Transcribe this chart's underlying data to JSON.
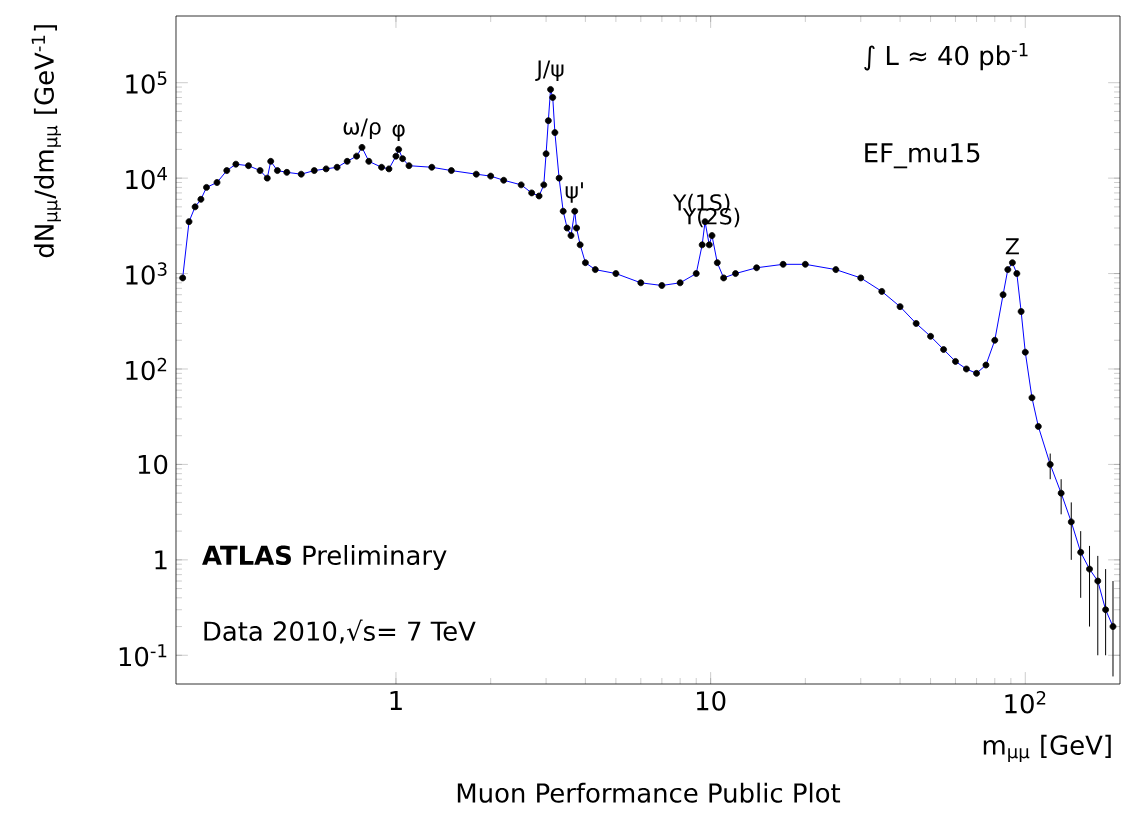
{
  "chart_data": {
    "type": "scatter",
    "ylabel": "dN$_{μμ}$/dm$_{μμ}$ [GeV$^{-1}$]",
    "xlabel": "m$_{μμ}$ [GeV]",
    "log": "xy",
    "xlim": [
      0.2,
      200
    ],
    "ylim": [
      0.05,
      500000
    ],
    "xticks": [
      1,
      10,
      {
        "value": 100,
        "label": "10$^{2}$"
      }
    ],
    "yticks": [
      {
        "value": 0.1,
        "label": "10$^{-1}$"
      },
      1,
      10,
      {
        "value": 100,
        "label": "10$^{2}$"
      },
      {
        "value": 1000,
        "label": "10$^{3}$"
      },
      {
        "value": 10000,
        "label": "10$^{4}$"
      },
      {
        "value": 100000,
        "label": "10$^{5}$"
      }
    ],
    "line_style": "solid",
    "x": [
      0.21,
      0.22,
      0.23,
      0.24,
      0.25,
      0.27,
      0.29,
      0.31,
      0.34,
      0.37,
      0.39,
      0.4,
      0.42,
      0.45,
      0.5,
      0.55,
      0.6,
      0.65,
      0.7,
      0.75,
      0.78,
      0.82,
      0.9,
      0.95,
      1.0,
      1.02,
      1.05,
      1.1,
      1.3,
      1.5,
      1.8,
      2.0,
      2.2,
      2.5,
      2.7,
      2.85,
      2.95,
      3.0,
      3.05,
      3.1,
      3.15,
      3.2,
      3.3,
      3.4,
      3.5,
      3.6,
      3.7,
      3.75,
      3.85,
      4.0,
      4.3,
      5,
      6,
      7,
      8,
      9,
      9.4,
      9.6,
      9.9,
      10.1,
      10.5,
      11,
      12,
      14,
      17,
      20,
      25,
      30,
      35,
      40,
      45,
      50,
      55,
      60,
      65,
      70,
      75,
      80,
      85,
      88,
      91,
      94,
      97,
      100,
      105,
      110,
      120,
      130,
      140,
      150,
      160,
      170,
      180,
      190
    ],
    "series": [
      {
        "type": "line",
        "marker": "none",
        "color": "#0000ff",
        "values": [
          900,
          3500,
          5000,
          6000,
          8000,
          9000,
          12000,
          14000,
          13500,
          12000,
          10000,
          15000,
          12000,
          11500,
          11000,
          12000,
          12500,
          13000,
          15000,
          17000,
          21000,
          15000,
          13000,
          12500,
          17000,
          20000,
          16000,
          13500,
          13000,
          12000,
          11000,
          10500,
          9500,
          8500,
          7000,
          6500,
          8500,
          18000,
          40000,
          85000,
          70000,
          30000,
          10000,
          4500,
          3000,
          2500,
          4500,
          3000,
          2000,
          1300,
          1100,
          1000,
          800,
          750,
          800,
          1000,
          2000,
          3500,
          2000,
          2500,
          1300,
          900,
          1000,
          1150,
          1250,
          1250,
          1100,
          900,
          650,
          450,
          300,
          220,
          160,
          120,
          100,
          90,
          110,
          200,
          600,
          1100,
          1300,
          1000,
          400,
          150,
          50,
          25,
          10,
          5,
          2.5,
          1.2,
          0.8,
          0.6,
          0.3,
          0.2
        ]
      },
      {
        "marker": "circle",
        "color": "#000000",
        "values": [
          900,
          3500,
          5000,
          6000,
          8000,
          9000,
          12000,
          14000,
          13500,
          12000,
          10000,
          15000,
          12000,
          11500,
          11000,
          12000,
          12500,
          13000,
          15000,
          17000,
          21000,
          15000,
          13000,
          12500,
          17000,
          20000,
          16000,
          13500,
          13000,
          12000,
          11000,
          10500,
          9500,
          8500,
          7000,
          6500,
          8500,
          18000,
          40000,
          85000,
          70000,
          30000,
          10000,
          4500,
          3000,
          2500,
          4500,
          3000,
          2000,
          1300,
          1100,
          1000,
          800,
          750,
          800,
          1000,
          2000,
          3500,
          2000,
          2500,
          1300,
          900,
          1000,
          1150,
          1250,
          1250,
          1100,
          900,
          650,
          450,
          300,
          220,
          160,
          120,
          100,
          90,
          110,
          200,
          600,
          1100,
          1300,
          1000,
          400,
          150,
          50,
          25,
          10,
          5,
          2.5,
          1.2,
          0.8,
          0.6,
          0.3,
          0.2
        ],
        "errors": [
          null,
          null,
          null,
          null,
          null,
          null,
          null,
          null,
          null,
          null,
          null,
          null,
          null,
          null,
          null,
          null,
          null,
          null,
          null,
          null,
          null,
          null,
          null,
          null,
          null,
          null,
          null,
          null,
          null,
          null,
          null,
          null,
          null,
          null,
          null,
          null,
          null,
          null,
          null,
          null,
          null,
          null,
          null,
          null,
          null,
          null,
          null,
          null,
          null,
          null,
          null,
          null,
          null,
          null,
          null,
          null,
          null,
          null,
          null,
          null,
          null,
          null,
          null,
          null,
          null,
          null,
          null,
          null,
          null,
          null,
          null,
          null,
          null,
          null,
          null,
          null,
          null,
          null,
          null,
          null,
          null,
          null,
          null,
          null,
          null,
          null,
          3,
          2,
          1.5,
          0.8,
          0.6,
          0.5,
          [
            0.1,
            0.8
          ],
          [
            0.06,
            0.6
          ]
        ]
      }
    ],
    "annotations": [
      {
        "text": "ω/ρ",
        "x": 0.78,
        "y": 21000
      },
      {
        "text": "φ",
        "x": 1.02,
        "y": 20000
      },
      {
        "text": "J/ψ",
        "x": 3.1,
        "y": 85000
      },
      {
        "text": "ψ'",
        "x": 3.7,
        "y": 4500
      },
      {
        "text": "Υ(1S)",
        "x": 9.4,
        "y": 3500
      },
      {
        "text": "Υ(2S)",
        "x": 10.1,
        "y": 2500
      },
      {
        "text": "Z",
        "x": 91,
        "y": 1300
      },
      "∫ L ≈ 40 pb$^{-1}$",
      "EF_mu15",
      "**ATLAS** Preliminary",
      "Data 2010,√s= 7 TeV",
      "Muon Performance Public Plot"
    ]
  }
}
